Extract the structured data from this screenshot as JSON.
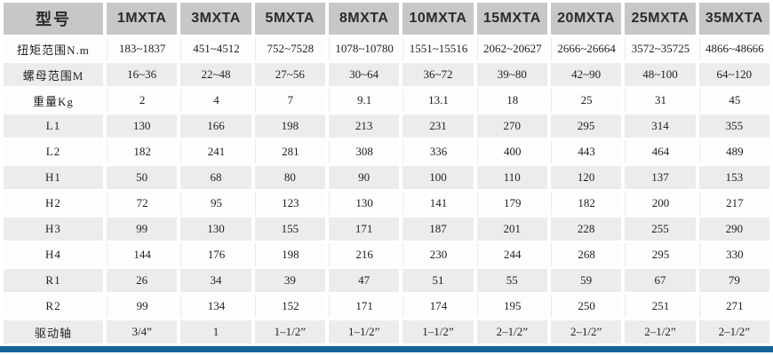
{
  "colors": {
    "header_bg": "#c7c7c7",
    "stripe_bg": "#ececec",
    "plain_bg": "#fdfdfd",
    "accent_bar": "#17639b",
    "header_text": "#2b2b2b",
    "body_text": "#1f1f1f"
  },
  "chart_data": {
    "type": "table",
    "columns": [
      "型号",
      "1MXTA",
      "3MXTA",
      "5MXTA",
      "8MXTA",
      "10MXTA",
      "15MXTA",
      "20MXTA",
      "25MXTA",
      "35MXTA"
    ],
    "rows": [
      [
        "扭矩范围N.m",
        "183~1837",
        "451~4512",
        "752~7528",
        "1078~10780",
        "1551~15516",
        "2062~20627",
        "2666~26664",
        "3572~35725",
        "4866~48666"
      ],
      [
        "螺母范围M",
        "16~36",
        "22~48",
        "27~56",
        "30~64",
        "36~72",
        "39~80",
        "42~90",
        "48~100",
        "64~120"
      ],
      [
        "重量Kg",
        "2",
        "4",
        "7",
        "9.1",
        "13.1",
        "18",
        "25",
        "31",
        "45"
      ],
      [
        "L1",
        "130",
        "166",
        "198",
        "213",
        "231",
        "270",
        "295",
        "314",
        "355"
      ],
      [
        "L2",
        "182",
        "241",
        "281",
        "308",
        "336",
        "400",
        "443",
        "464",
        "489"
      ],
      [
        "H1",
        "50",
        "68",
        "80",
        "90",
        "100",
        "110",
        "120",
        "137",
        "153"
      ],
      [
        "H2",
        "72",
        "95",
        "123",
        "130",
        "141",
        "179",
        "182",
        "200",
        "217"
      ],
      [
        "H3",
        "99",
        "130",
        "155",
        "171",
        "187",
        "201",
        "228",
        "255",
        "290"
      ],
      [
        "H4",
        "144",
        "176",
        "198",
        "216",
        "230",
        "244",
        "268",
        "295",
        "330"
      ],
      [
        "R1",
        "26",
        "34",
        "39",
        "47",
        "51",
        "55",
        "59",
        "67",
        "79"
      ],
      [
        "R2",
        "99",
        "134",
        "152",
        "171",
        "174",
        "195",
        "250",
        "251",
        "271"
      ],
      [
        "驱动轴",
        "3/4”",
        "1",
        "1–1/2”",
        "1–1/2”",
        "1–1/2”",
        "2–1/2”",
        "2–1/2”",
        "2–1/2”",
        "2–1/2”"
      ]
    ],
    "layout": {
      "striped_rows": "even data rows shaded",
      "header_row": "gray",
      "grid": "white cell spacing gaps"
    }
  }
}
